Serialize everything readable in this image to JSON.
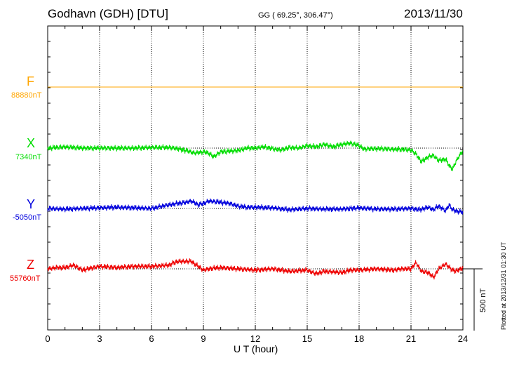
{
  "header": {
    "station": "Godhavn (GDH)  [DTU]",
    "coords": "GG ( 69.25°, 306.47°)",
    "date": "2013/11/30"
  },
  "footer": {
    "plotted": "Plotted at 2013/12/31 01:30 UT"
  },
  "colors": {
    "F": "#ffa500",
    "X": "#00dd00",
    "Y": "#0000dd",
    "Z": "#ee0000",
    "axis": "#000000"
  },
  "chart_data": {
    "type": "line",
    "title": "Godhavn (GDH)  [DTU]",
    "xlabel": "U T (hour)",
    "xlim": [
      0,
      24
    ],
    "xticks": [
      0,
      3,
      6,
      9,
      12,
      15,
      18,
      21,
      24
    ],
    "xtick_labels": [
      "0",
      "3",
      "6",
      "9",
      "12",
      "15",
      "18",
      "21",
      "24"
    ],
    "grid": "vertical dotted every 3 hours",
    "scale_bar": {
      "label": "500 nT",
      "value": 500
    },
    "series": [
      {
        "name": "F",
        "baseline_label": "88880nT",
        "baseline": 88880,
        "x": [
          0,
          24
        ],
        "values": [
          0,
          0
        ]
      },
      {
        "name": "X",
        "baseline_label": "7340nT",
        "baseline": 7340,
        "x": [
          0,
          0.5,
          1,
          1.5,
          2,
          3,
          4,
          5,
          6,
          7,
          7.5,
          8,
          8.5,
          9,
          9.3,
          9.6,
          10,
          10.5,
          11,
          11.5,
          12,
          12.5,
          13,
          13.5,
          14,
          14.5,
          15,
          15.5,
          16,
          16.5,
          17,
          17.5,
          18,
          18.3,
          18.6,
          19,
          19.5,
          20,
          20.5,
          21,
          21.3,
          21.6,
          22,
          22.3,
          22.6,
          23,
          23.2,
          23.4,
          23.6,
          23.8,
          24
        ],
        "values": [
          0,
          5,
          10,
          5,
          0,
          0,
          0,
          0,
          5,
          5,
          -5,
          -20,
          -40,
          -30,
          -40,
          -70,
          -30,
          -25,
          -20,
          0,
          0,
          10,
          -5,
          -15,
          5,
          0,
          20,
          10,
          30,
          10,
          30,
          40,
          20,
          -10,
          -5,
          -5,
          -5,
          -10,
          -10,
          -15,
          -50,
          -110,
          -70,
          -60,
          -100,
          -90,
          -140,
          -170,
          -110,
          -60,
          -20
        ]
      },
      {
        "name": "Y",
        "baseline_label": "-5050nT",
        "baseline": -5050,
        "x": [
          0,
          1,
          2,
          3,
          4,
          5,
          6,
          7,
          7.5,
          8,
          8.3,
          8.7,
          9,
          9.3,
          10,
          10.5,
          11,
          11.5,
          12,
          13,
          14,
          15,
          16,
          17,
          18,
          19,
          20,
          21,
          21.5,
          22,
          22.3,
          22.6,
          23,
          23.2,
          23.4,
          23.6,
          24
        ],
        "values": [
          0,
          -5,
          0,
          5,
          10,
          5,
          0,
          30,
          40,
          50,
          60,
          30,
          40,
          60,
          50,
          40,
          20,
          10,
          10,
          5,
          -10,
          0,
          -5,
          -5,
          5,
          -5,
          -5,
          0,
          -10,
          10,
          -10,
          20,
          -20,
          30,
          -10,
          -20,
          -30
        ]
      },
      {
        "name": "Z",
        "baseline_label": "55760nT",
        "baseline": 55760,
        "x": [
          0,
          0.5,
          1,
          1.5,
          2,
          3,
          4,
          5,
          6,
          7,
          7.5,
          8,
          8.3,
          8.6,
          9,
          9.5,
          10,
          10.5,
          11,
          12,
          13,
          14,
          15,
          15.5,
          16,
          17,
          17.5,
          18,
          19,
          20,
          20.5,
          21,
          21.3,
          21.6,
          22,
          22.3,
          22.6,
          23,
          23.3,
          23.6,
          24
        ],
        "values": [
          0,
          10,
          10,
          30,
          -10,
          20,
          10,
          20,
          20,
          30,
          60,
          60,
          60,
          30,
          -10,
          5,
          10,
          5,
          0,
          -10,
          0,
          -20,
          -10,
          -40,
          -20,
          -30,
          -10,
          -10,
          0,
          -10,
          0,
          0,
          50,
          -20,
          -30,
          -70,
          0,
          40,
          0,
          -20,
          10
        ]
      }
    ]
  }
}
